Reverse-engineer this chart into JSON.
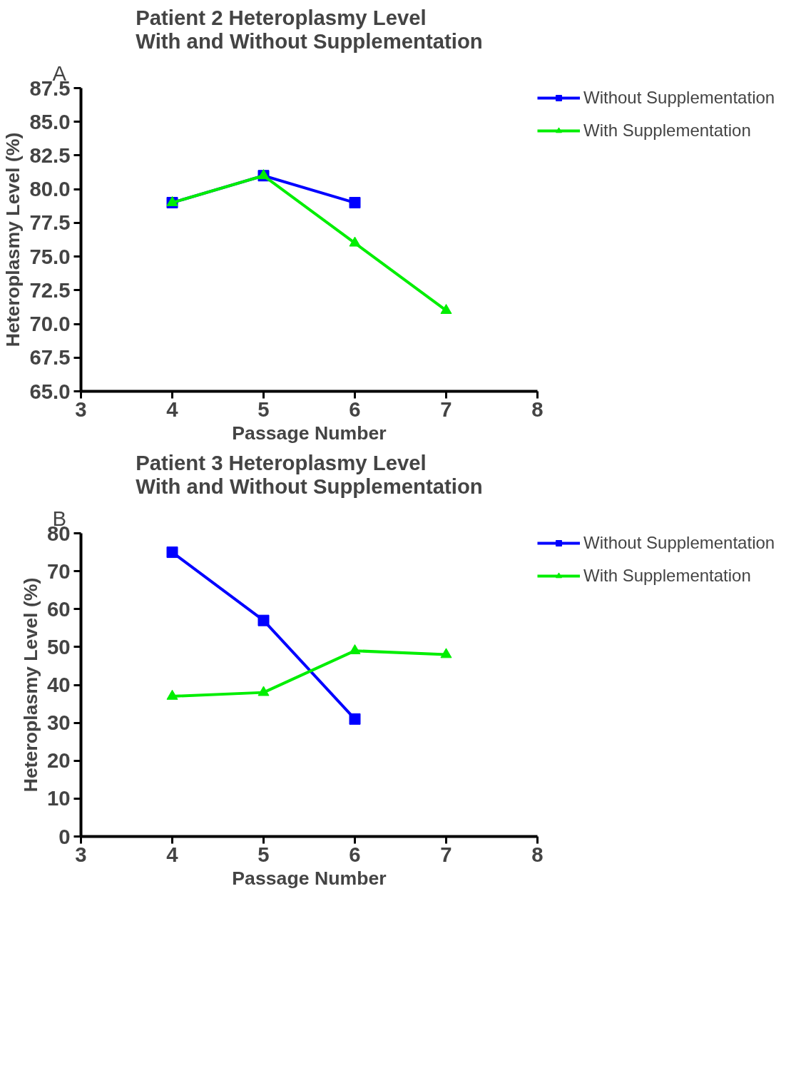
{
  "chart_data": [
    {
      "type": "line",
      "title": "Patient 2 Heteroplasmy Level\nWith and Without Supplementation",
      "xlabel": "Passage Number",
      "ylabel": "Heteroplasmy Level (%)",
      "annotations": [
        "A"
      ],
      "x": [
        4,
        5,
        6,
        7
      ],
      "xlim": [
        3,
        8
      ],
      "xticks": [
        3,
        4,
        5,
        6,
        7,
        8
      ],
      "ylim": [
        65,
        87.5
      ],
      "yticks": [
        {
          "value": 65,
          "label": "65.0"
        },
        67.5,
        {
          "value": 70,
          "label": "70.0"
        },
        72.5,
        {
          "value": 75,
          "label": "75.0"
        },
        77.5,
        {
          "value": 80,
          "label": "80.0"
        },
        82.5,
        {
          "value": 85,
          "label": "85.0"
        },
        87.5
      ],
      "series": [
        {
          "name": "Without Supplementation",
          "color": "#0000ff",
          "marker": "square",
          "values": [
            79,
            81,
            79,
            null
          ]
        },
        {
          "name": "With Supplementation",
          "color": "#00ee00",
          "marker": "triangle",
          "values": [
            79,
            81,
            76,
            71
          ]
        }
      ],
      "grid": false,
      "legend": "top right",
      "line_style": "solid"
    },
    {
      "type": "line",
      "title": "Patient 3 Heteroplasmy Level\nWith and Without Supplementation",
      "xlabel": "Passage Number",
      "ylabel": "Heteroplasmy Level (%)",
      "annotations": [
        "B"
      ],
      "x": [
        4,
        5,
        6,
        7
      ],
      "xlim": [
        3,
        8
      ],
      "xticks": [
        3,
        4,
        5,
        6,
        7,
        8
      ],
      "ylim": [
        0,
        80
      ],
      "yticks": [
        0,
        10,
        20,
        30,
        40,
        50,
        60,
        70,
        80
      ],
      "series": [
        {
          "name": "Without Supplementation",
          "color": "#0000ff",
          "marker": "square",
          "values": [
            75,
            57,
            31,
            null
          ]
        },
        {
          "name": "With Supplementation",
          "color": "#00ee00",
          "marker": "triangle",
          "values": [
            37,
            38,
            49,
            48
          ]
        }
      ],
      "grid": false,
      "legend": "top right",
      "line_style": "solid"
    }
  ]
}
